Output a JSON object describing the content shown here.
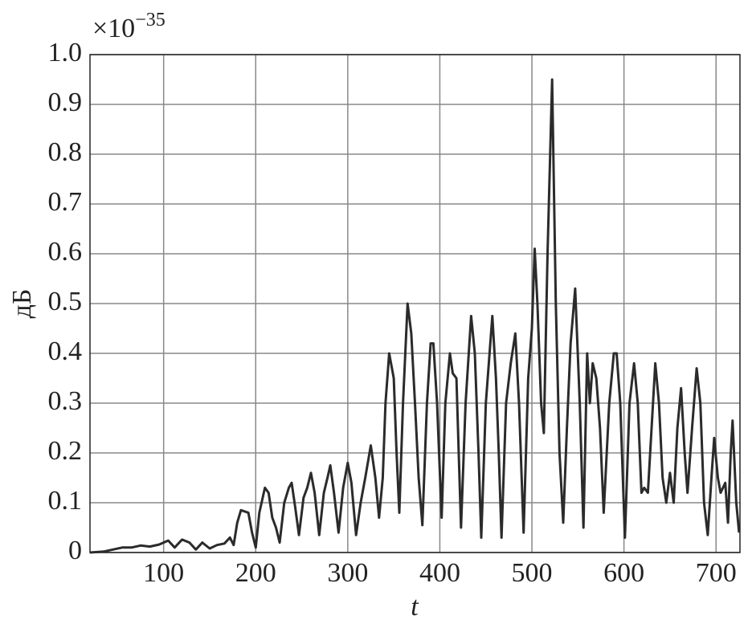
{
  "chart_data": {
    "type": "line",
    "x_label": "t",
    "y_label": "дБ",
    "y_multiplier": "×10",
    "y_multiplier_exponent": "−35",
    "x": [
      20,
      35,
      45,
      55,
      65,
      75,
      85,
      95,
      105,
      112,
      120,
      128,
      135,
      142,
      150,
      158,
      166,
      172,
      176,
      180,
      184,
      192,
      196,
      200,
      204,
      210,
      214,
      218,
      222,
      226,
      231,
      236,
      239,
      243,
      247,
      252,
      256,
      260,
      264,
      269,
      274,
      278,
      281,
      285,
      290,
      295,
      300,
      304,
      309,
      314,
      319,
      325,
      330,
      334,
      338,
      341,
      345,
      350,
      353,
      356,
      360,
      365,
      369,
      373,
      377,
      381,
      386,
      390,
      393,
      397,
      402,
      406,
      411,
      414,
      418,
      423,
      428,
      434,
      438,
      442,
      445,
      450,
      457,
      461,
      464,
      467,
      472,
      477,
      482,
      486,
      491,
      496,
      500,
      503,
      506,
      510,
      513,
      517,
      522,
      526,
      530,
      534,
      538,
      542,
      547,
      552,
      556,
      560,
      563,
      566,
      570,
      574,
      578,
      584,
      589,
      592,
      596,
      601,
      606,
      611,
      615,
      619,
      622,
      626,
      630,
      634,
      638,
      642,
      646,
      650,
      654,
      658,
      662,
      666,
      669,
      674,
      679,
      683,
      687,
      691,
      695,
      698,
      702,
      705,
      710,
      713,
      716,
      718,
      722,
      725
    ],
    "series": [
      {
        "color": "#2b2b2b",
        "values": [
          0,
          0.002,
          0.006,
          0.01,
          0.01,
          0.014,
          0.012,
          0.016,
          0.024,
          0.01,
          0.026,
          0.02,
          0.006,
          0.02,
          0.008,
          0.015,
          0.018,
          0.03,
          0.015,
          0.06,
          0.085,
          0.08,
          0.04,
          0.01,
          0.08,
          0.13,
          0.12,
          0.07,
          0.05,
          0.02,
          0.1,
          0.13,
          0.14,
          0.09,
          0.035,
          0.11,
          0.13,
          0.16,
          0.12,
          0.035,
          0.12,
          0.15,
          0.175,
          0.12,
          0.04,
          0.13,
          0.18,
          0.14,
          0.035,
          0.1,
          0.15,
          0.215,
          0.15,
          0.07,
          0.15,
          0.3,
          0.4,
          0.35,
          0.2,
          0.08,
          0.3,
          0.5,
          0.44,
          0.3,
          0.15,
          0.055,
          0.3,
          0.42,
          0.42,
          0.3,
          0.07,
          0.3,
          0.4,
          0.36,
          0.35,
          0.05,
          0.3,
          0.475,
          0.4,
          0.2,
          0.03,
          0.3,
          0.475,
          0.35,
          0.2,
          0.03,
          0.3,
          0.38,
          0.44,
          0.3,
          0.04,
          0.35,
          0.45,
          0.61,
          0.5,
          0.3,
          0.24,
          0.6,
          0.95,
          0.5,
          0.2,
          0.06,
          0.25,
          0.42,
          0.53,
          0.3,
          0.05,
          0.4,
          0.3,
          0.38,
          0.35,
          0.25,
          0.08,
          0.3,
          0.4,
          0.4,
          0.3,
          0.03,
          0.3,
          0.38,
          0.3,
          0.12,
          0.13,
          0.12,
          0.25,
          0.38,
          0.3,
          0.15,
          0.1,
          0.16,
          0.1,
          0.25,
          0.33,
          0.2,
          0.12,
          0.25,
          0.37,
          0.3,
          0.1,
          0.035,
          0.15,
          0.23,
          0.15,
          0.12,
          0.14,
          0.06,
          0.2,
          0.265,
          0.1,
          0.04
        ]
      }
    ],
    "xlim": [
      20,
      726
    ],
    "ylim": [
      0,
      1
    ],
    "xticks": [
      100,
      200,
      300,
      400,
      500,
      600,
      700
    ],
    "yticks": [
      0,
      0.1,
      0.2,
      0.3,
      0.4,
      0.5,
      0.6,
      0.7,
      0.8,
      0.9,
      {
        "value": 1,
        "label": "1.0"
      }
    ],
    "grid": true
  }
}
